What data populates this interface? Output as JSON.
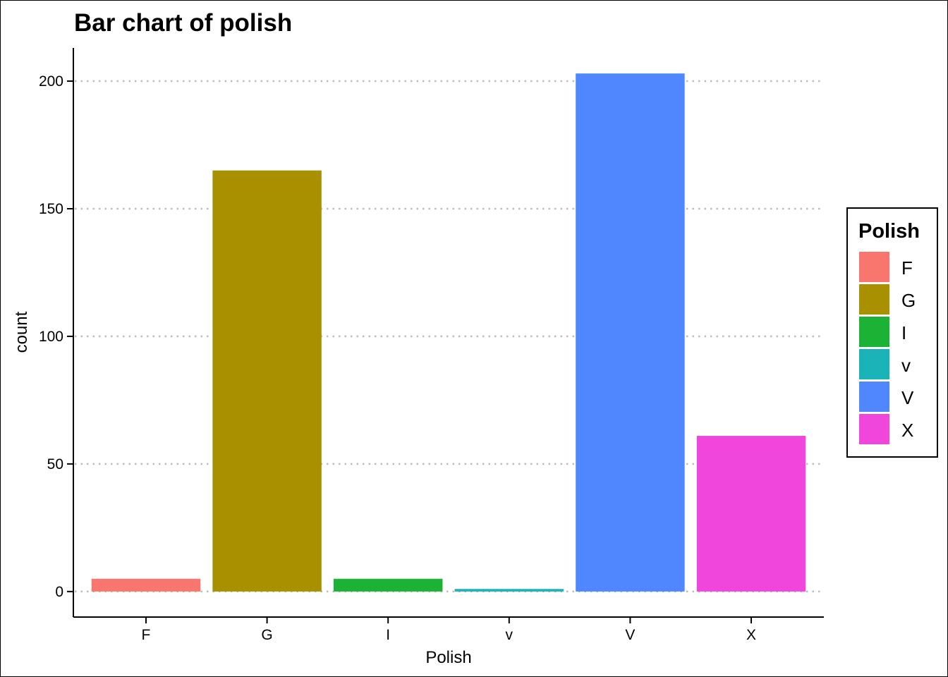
{
  "chart_data": {
    "type": "bar",
    "title": "Bar chart of polish",
    "xlabel": "Polish",
    "ylabel": "count",
    "categories": [
      "F",
      "G",
      "I",
      "v",
      "V",
      "X"
    ],
    "values": [
      5,
      165,
      5,
      1,
      203,
      61
    ],
    "colors": [
      "#F8766D",
      "#A89000",
      "#1CB236",
      "#19B3B8",
      "#5087FF",
      "#F046DB"
    ],
    "ylim": [
      -10,
      213
    ],
    "yticks": [
      0,
      50,
      100,
      150,
      200
    ],
    "grid": "horizontal-dotted",
    "legend": {
      "title": "Polish",
      "placement": "right",
      "entries": [
        "F",
        "G",
        "I",
        "v",
        "V",
        "X"
      ]
    }
  }
}
